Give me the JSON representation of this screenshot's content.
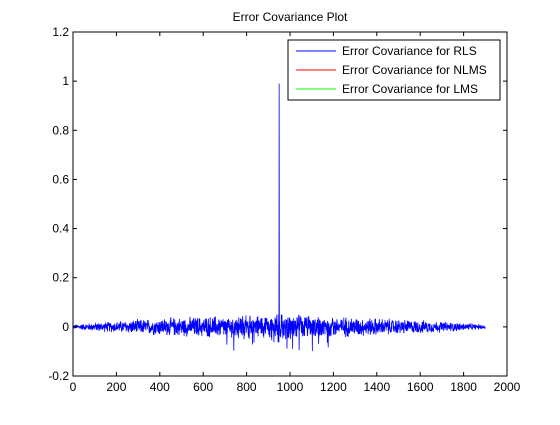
{
  "chart_data": {
    "type": "line",
    "title": "Error Covariance Plot",
    "xlabel": "",
    "ylabel": "",
    "xlim": [
      0,
      2000
    ],
    "ylim": [
      -0.2,
      1.2
    ],
    "x_ticks": [
      0,
      200,
      400,
      600,
      800,
      1000,
      1200,
      1400,
      1600,
      1800,
      2000
    ],
    "y_ticks": [
      -0.2,
      0,
      0.2,
      0.4,
      0.6,
      0.8,
      1,
      1.2
    ],
    "x_tick_labels": [
      "0",
      "200",
      "400",
      "600",
      "800",
      "1000",
      "1200",
      "1400",
      "1600",
      "1800",
      "2000"
    ],
    "y_tick_labels": [
      "-0.2",
      "0",
      "0.2",
      "0.4",
      "0.6",
      "0.8",
      "1",
      "1.2"
    ],
    "grid": false,
    "legend_position": "top-right",
    "x_range_data": [
      1,
      1900
    ],
    "series": [
      {
        "name": "Error Covariance for RLS",
        "color": "#0000ff",
        "peak": {
          "x": 950,
          "y": 0.99
        },
        "noise_envelope": [
          {
            "x": 1,
            "amp": 0.01
          },
          {
            "x": 100,
            "amp": 0.02
          },
          {
            "x": 400,
            "amp": 0.04
          },
          {
            "x": 950,
            "amp": 0.06
          },
          {
            "x": 1400,
            "amp": 0.04
          },
          {
            "x": 1700,
            "amp": 0.025
          },
          {
            "x": 1900,
            "amp": 0.01
          }
        ],
        "extreme_low": -0.1
      },
      {
        "name": "Error Covariance for NLMS",
        "color": "#ff0000"
      },
      {
        "name": "Error Covariance for LMS",
        "color": "#00ff00"
      }
    ]
  }
}
